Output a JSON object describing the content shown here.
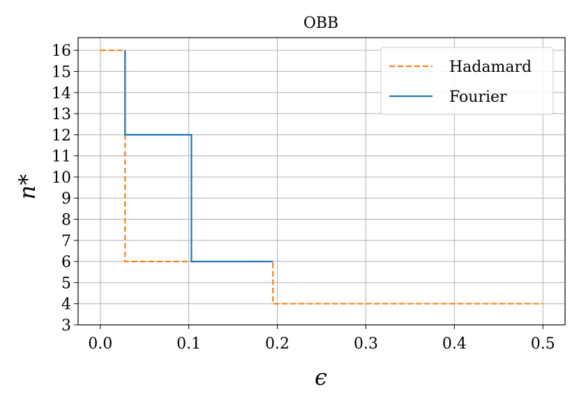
{
  "chart_data": {
    "type": "line",
    "title": "OBB",
    "xlabel": "ϵ",
    "ylabel": "n*",
    "xlim": [
      -0.025,
      0.525
    ],
    "ylim": [
      3,
      16.6
    ],
    "xticks": [
      0.0,
      0.1,
      0.2,
      0.3,
      0.4,
      0.5
    ],
    "xtick_labels": [
      "0.0",
      "0.1",
      "0.2",
      "0.3",
      "0.4",
      "0.5"
    ],
    "yticks": [
      3,
      4,
      5,
      6,
      7,
      8,
      9,
      10,
      11,
      12,
      13,
      14,
      15,
      16
    ],
    "ytick_labels": [
      "3",
      "4",
      "5",
      "6",
      "7",
      "8",
      "9",
      "10",
      "11",
      "12",
      "13",
      "14",
      "15",
      "16"
    ],
    "grid": true,
    "legend_position": "upper right",
    "series": [
      {
        "name": "Hadamard",
        "style": "dashed",
        "color": "#ff7f0e",
        "x": [
          0.0,
          0.028,
          0.028,
          0.195,
          0.195,
          0.5
        ],
        "y": [
          16,
          16,
          6,
          6,
          4,
          4
        ]
      },
      {
        "name": "Fourier",
        "style": "solid",
        "color": "#1f77b4",
        "x": [
          0.028,
          0.028,
          0.103,
          0.103,
          0.195
        ],
        "y": [
          16,
          12,
          12,
          6,
          6
        ]
      }
    ]
  }
}
